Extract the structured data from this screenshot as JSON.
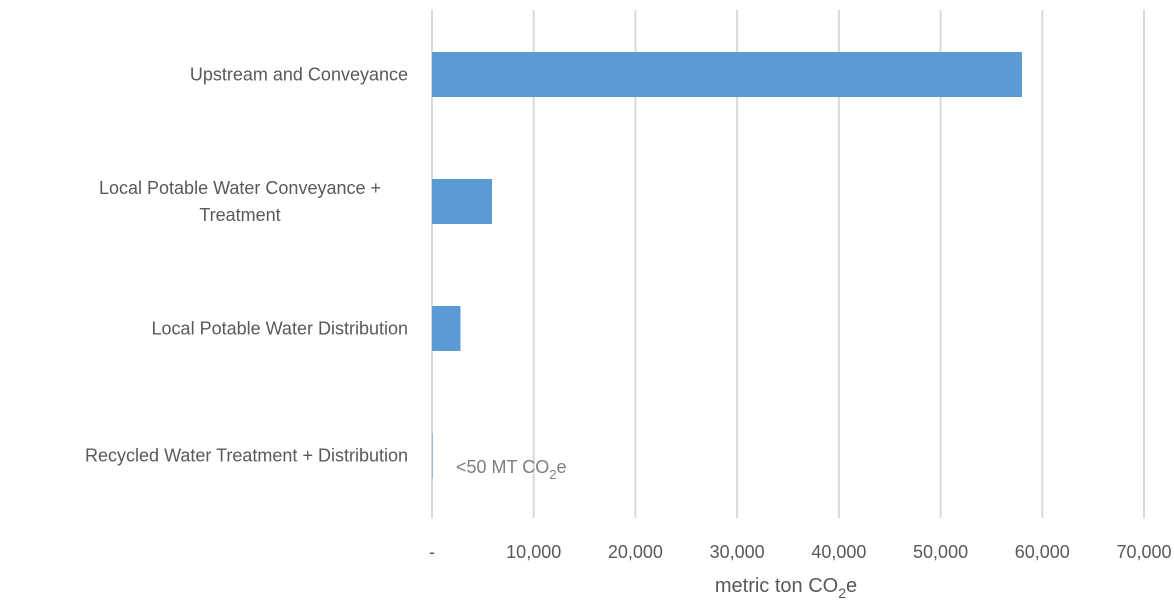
{
  "chart_data": {
    "type": "bar",
    "orientation": "horizontal",
    "categories": [
      [
        "Upstream and Conveyance"
      ],
      [
        "Local Potable Water Conveyance +",
        "Treatment"
      ],
      [
        "Local Potable Water Distribution"
      ],
      [
        "Recycled Water Treatment + Distribution"
      ]
    ],
    "values": [
      58000,
      5900,
      2800,
      50
    ],
    "bar_color": "#5b9bd5",
    "xlim": [
      0,
      70000
    ],
    "xticks": [
      0,
      10000,
      20000,
      30000,
      40000,
      50000,
      60000,
      70000
    ],
    "xtick_labels": [
      "-",
      "10,000",
      "20,000",
      "30,000",
      "40,000",
      "50,000",
      "60,000",
      "70,000"
    ],
    "xlabel": {
      "text": "metric ton CO",
      "sub": "2",
      "tail": "e"
    },
    "title": "",
    "grid": "vertical",
    "annotation": {
      "text": "<50 MT CO",
      "sub": "2",
      "tail": "e",
      "category_index": 3
    }
  }
}
